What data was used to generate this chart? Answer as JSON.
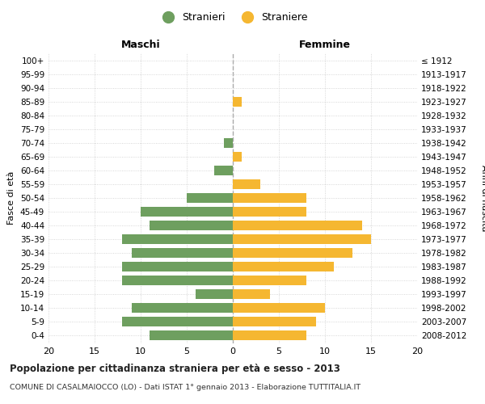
{
  "age_groups": [
    "0-4",
    "5-9",
    "10-14",
    "15-19",
    "20-24",
    "25-29",
    "30-34",
    "35-39",
    "40-44",
    "45-49",
    "50-54",
    "55-59",
    "60-64",
    "65-69",
    "70-74",
    "75-79",
    "80-84",
    "85-89",
    "90-94",
    "95-99",
    "100+"
  ],
  "birth_years": [
    "2008-2012",
    "2003-2007",
    "1998-2002",
    "1993-1997",
    "1988-1992",
    "1983-1987",
    "1978-1982",
    "1973-1977",
    "1968-1972",
    "1963-1967",
    "1958-1962",
    "1953-1957",
    "1948-1952",
    "1943-1947",
    "1938-1942",
    "1933-1937",
    "1928-1932",
    "1923-1927",
    "1918-1922",
    "1913-1917",
    "≤ 1912"
  ],
  "maschi": [
    9,
    12,
    11,
    4,
    12,
    12,
    11,
    12,
    9,
    10,
    5,
    0,
    2,
    0,
    1,
    0,
    0,
    0,
    0,
    0,
    0
  ],
  "femmine": [
    8,
    9,
    10,
    4,
    8,
    11,
    13,
    15,
    14,
    8,
    8,
    3,
    0,
    1,
    0,
    0,
    0,
    1,
    0,
    0,
    0
  ],
  "male_color": "#6e9f5f",
  "female_color": "#f5b731",
  "background_color": "#ffffff",
  "grid_color": "#cccccc",
  "bar_height": 0.72,
  "xlim": 20,
  "title": "Popolazione per cittadinanza straniera per età e sesso - 2013",
  "subtitle": "COMUNE DI CASALMAIOCCO (LO) - Dati ISTAT 1° gennaio 2013 - Elaborazione TUTTITALIA.IT",
  "ylabel_left": "Fasce di età",
  "ylabel_right": "Anni di nascita",
  "legend_male": "Stranieri",
  "legend_female": "Straniere",
  "maschi_header": "Maschi",
  "femmine_header": "Femmine"
}
